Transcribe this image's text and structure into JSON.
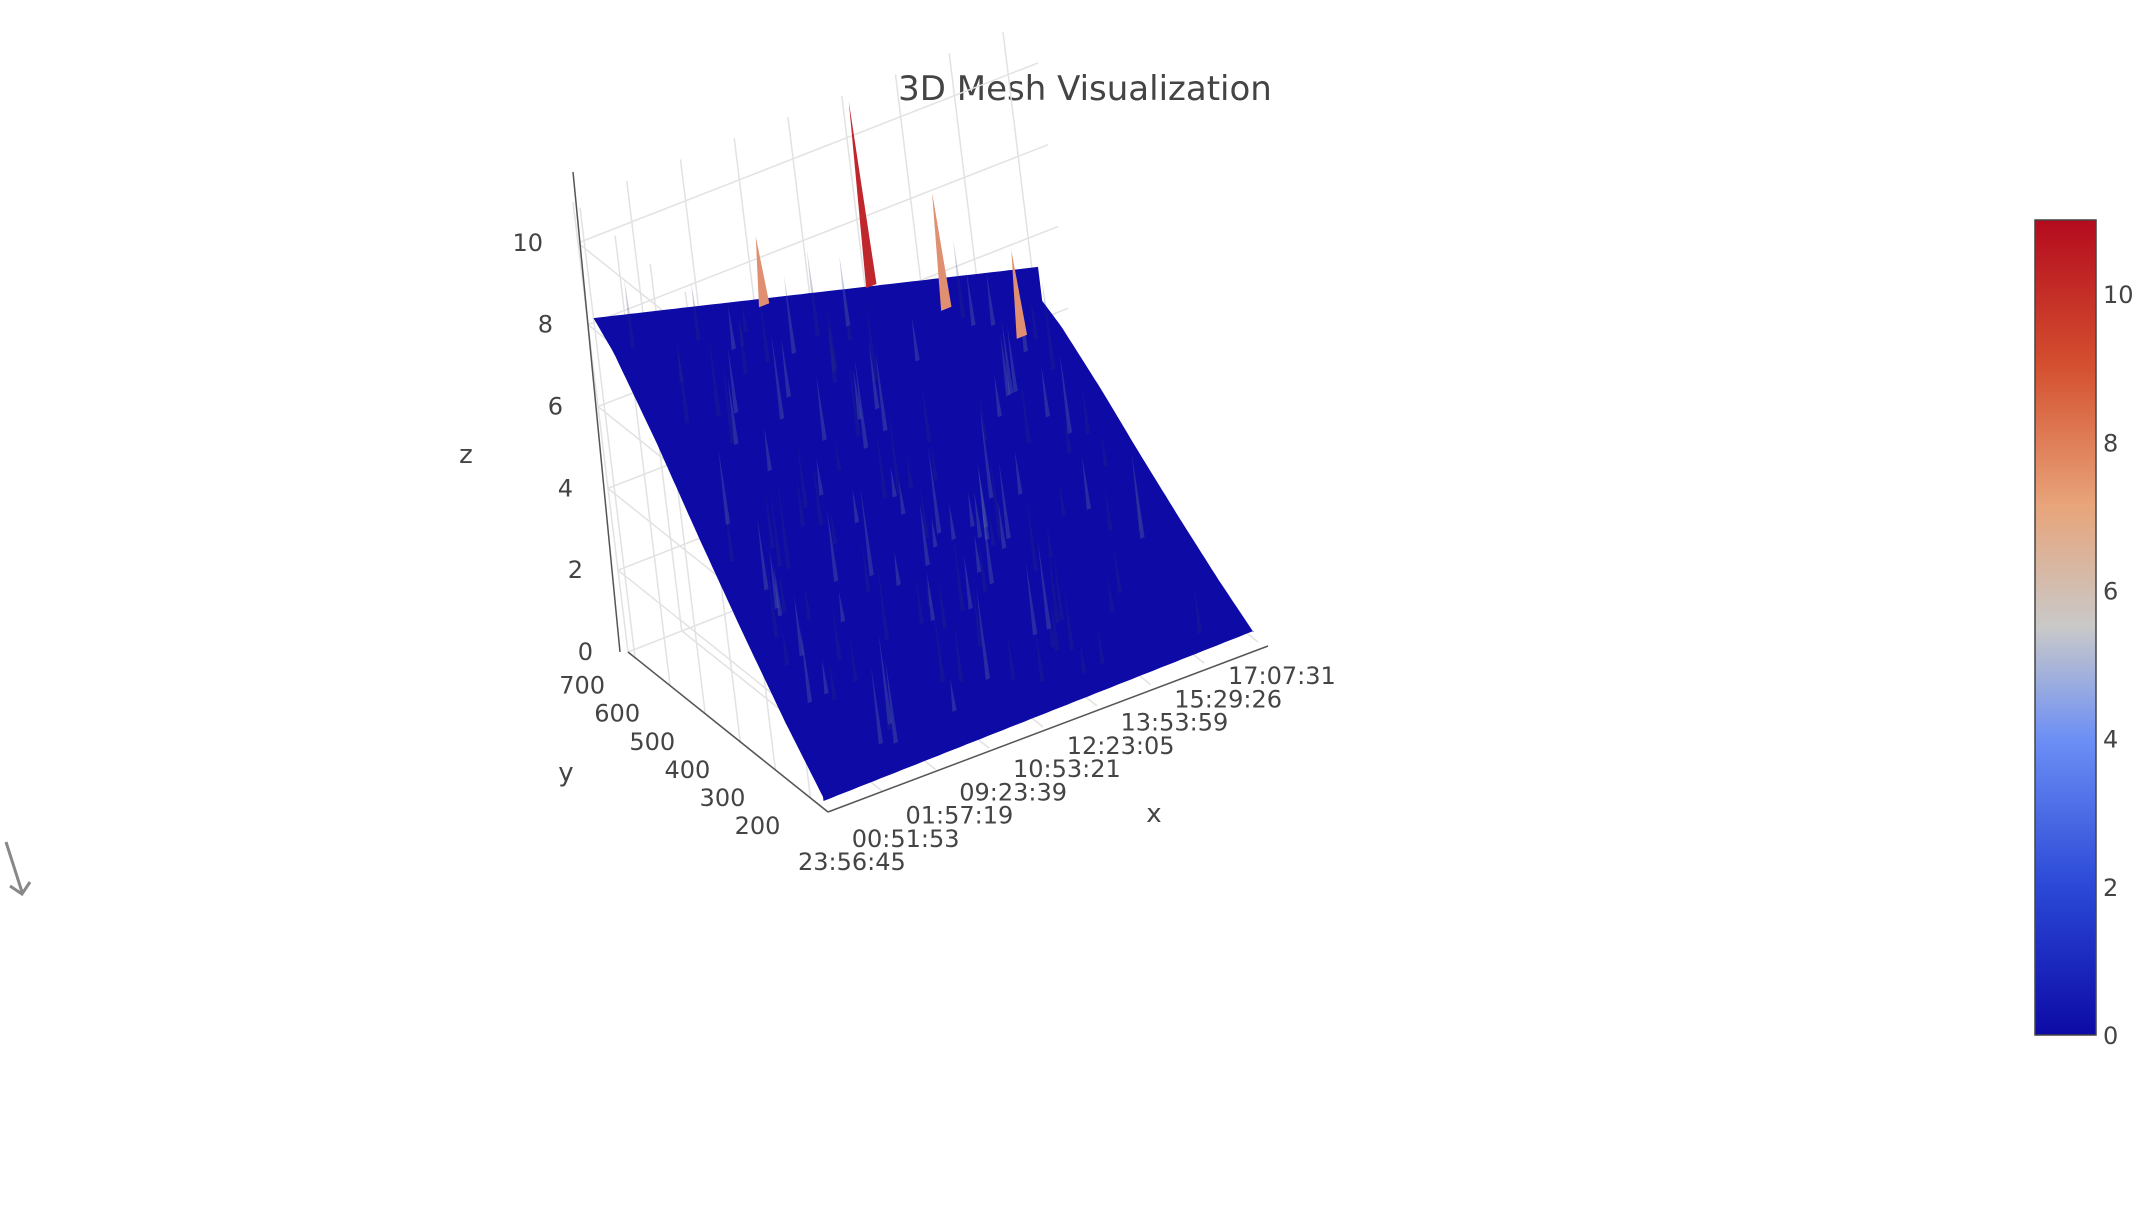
{
  "chart_data": {
    "type": "surface",
    "title": "3D Mesh Visualization",
    "xlabel": "x",
    "ylabel": "y",
    "zlabel": "z",
    "x_ticks": [
      "23:56:45",
      "00:51:53",
      "01:57:19",
      "09:23:39",
      "10:53:21",
      "12:23:05",
      "13:53:59",
      "15:29:26",
      "17:07:31"
    ],
    "y_ticks": [
      200,
      300,
      400,
      500,
      600,
      700
    ],
    "z_ticks": [
      0,
      2,
      4,
      6,
      8,
      10
    ],
    "zlim": [
      0,
      11
    ],
    "ylim": [
      150,
      720
    ],
    "colorbar": {
      "ticks": [
        0,
        2,
        4,
        6,
        8,
        10
      ],
      "range": [
        0,
        11
      ],
      "colorscale": [
        "#0d0aa6",
        "#2a48d6",
        "#6b8ef5",
        "#c9c9c9",
        "#e8a47a",
        "#d4502f",
        "#b40b1e"
      ]
    },
    "grid": true,
    "surface_profile": {
      "y": [
        160,
        250,
        350,
        450,
        550,
        650,
        700
      ],
      "z": [
        0.3,
        1.5,
        3.0,
        4.6,
        6.3,
        7.8,
        8.3
      ]
    },
    "spikes": [
      {
        "x": "12:23:05",
        "y": 700,
        "z": 11.0
      },
      {
        "x": "13:53:59",
        "y": 650,
        "z": 8.6
      },
      {
        "x": "09:23:39",
        "y": 690,
        "z": 8.8
      },
      {
        "x": "15:29:26",
        "y": 600,
        "z": 7.0
      }
    ]
  }
}
